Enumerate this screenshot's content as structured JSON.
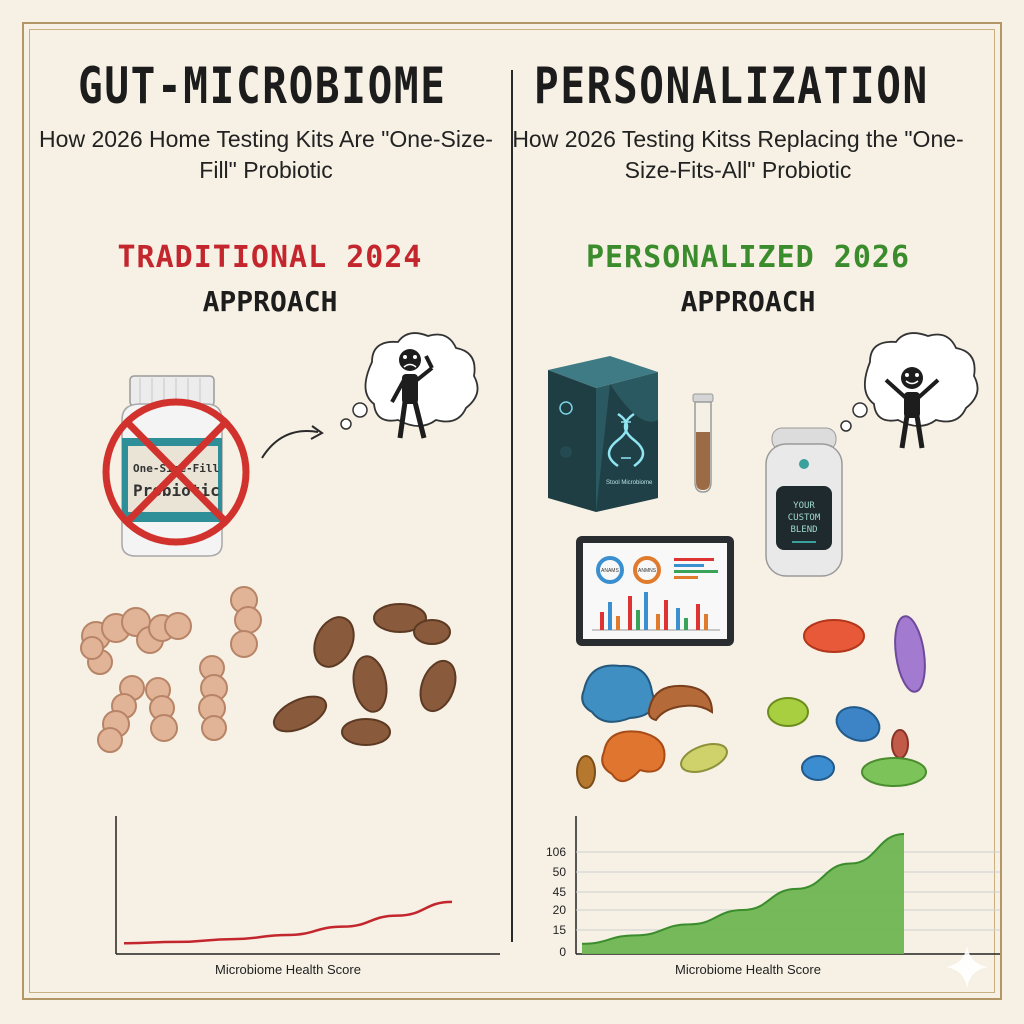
{
  "header": {
    "title_left": "GUT-MICROBIOME",
    "title_right": "PERSONALIZATION",
    "subtitle_left": "How 2026 Home Testing Kits Are \"One-Size-Fill\" Probiotic",
    "subtitle_right": "How 2026 Testing Kitss Replacing the \"One-Size-Fits-All\" Probiotic"
  },
  "left": {
    "era_label": "TRADITIONAL 2024",
    "approach_label": "APPROACH",
    "bottle_label_line1": "One-Size-Fill",
    "bottle_label_line2": "Probiotic",
    "chart_xlabel": "Microbiome Health Score"
  },
  "right": {
    "era_label": "PERSONALIZED 2026",
    "approach_label": "APPROACH",
    "device_text_line1": "YOUR",
    "device_text_line2": "CUSTOM",
    "device_text_line3": "BLEND",
    "box_text": "Stool Microbiome",
    "tablet_label_a": "ANAMS",
    "tablet_label_b": "ANMNS",
    "chart_xlabel": "Microbiome Health Score"
  },
  "colors": {
    "traditional": "#c4262e",
    "personalized": "#3b8c2c",
    "frame": "#b39665",
    "background": "#f6f1e4"
  },
  "icons": [
    "no-sign-icon",
    "sad-person-icon",
    "happy-person-icon",
    "dna-icon",
    "sparkle-icon"
  ],
  "chart_data": [
    {
      "type": "line",
      "title": "",
      "xlabel": "Microbiome Health Score",
      "ylabel": "",
      "series": [
        {
          "values": [
            2,
            3,
            5,
            8,
            14,
            22,
            32
          ]
        }
      ],
      "ylim": [
        0,
        100
      ],
      "grid": false,
      "color": "#c4262e"
    },
    {
      "type": "area",
      "title": "",
      "xlabel": "Microbiome Health Score",
      "ylabel": "",
      "y_tick_labels": [
        "0",
        "15",
        "20",
        "45",
        "50",
        "106"
      ],
      "series": [
        {
          "values": [
            5,
            15,
            28,
            45,
            70,
            100,
            135
          ]
        }
      ],
      "grid": true,
      "color": "#6fb553"
    }
  ]
}
